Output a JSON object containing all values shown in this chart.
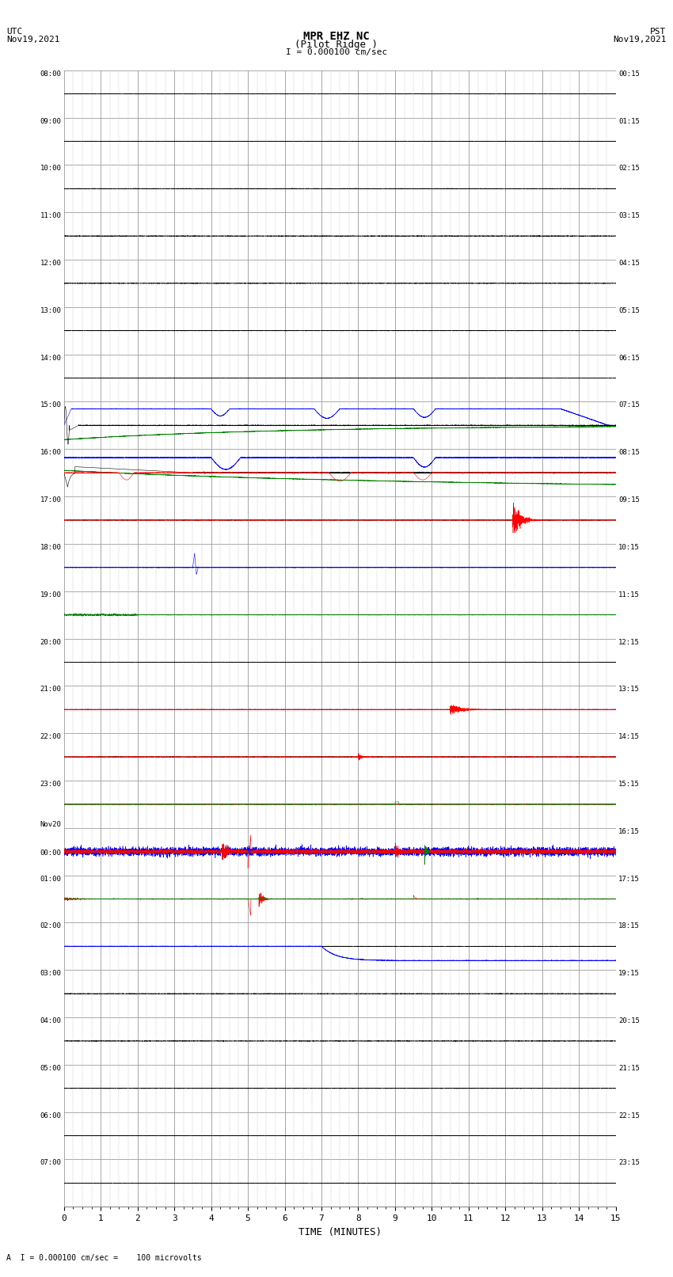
{
  "title_line1": "MPR EHZ NC",
  "title_line2": "(Pilot Ridge )",
  "scale_label": "I = 0.000100 cm/sec",
  "utc_label": "UTC\nNov19,2021",
  "pst_label": "PST\nNov19,2021",
  "bottom_label": "A  I = 0.000100 cm/sec =    100 microvolts",
  "xlabel": "TIME (MINUTES)",
  "left_times": [
    "08:00",
    "09:00",
    "10:00",
    "11:00",
    "12:00",
    "13:00",
    "14:00",
    "15:00",
    "16:00",
    "17:00",
    "18:00",
    "19:00",
    "20:00",
    "21:00",
    "22:00",
    "23:00",
    "Nov20\n00:00",
    "01:00",
    "02:00",
    "03:00",
    "04:00",
    "05:00",
    "06:00",
    "07:00"
  ],
  "right_times": [
    "00:15",
    "01:15",
    "02:15",
    "03:15",
    "04:15",
    "05:15",
    "06:15",
    "07:15",
    "08:15",
    "09:15",
    "10:15",
    "11:15",
    "12:15",
    "13:15",
    "14:15",
    "15:15",
    "16:15",
    "17:15",
    "18:15",
    "19:15",
    "20:15",
    "21:15",
    "22:15",
    "23:15"
  ],
  "n_rows": 24,
  "n_minutes": 15,
  "fig_width": 8.5,
  "fig_height": 16.13,
  "background_color": "#ffffff",
  "grid_major_color": "#888888",
  "grid_minor_color": "#cccccc",
  "row_line_color": "#000000"
}
